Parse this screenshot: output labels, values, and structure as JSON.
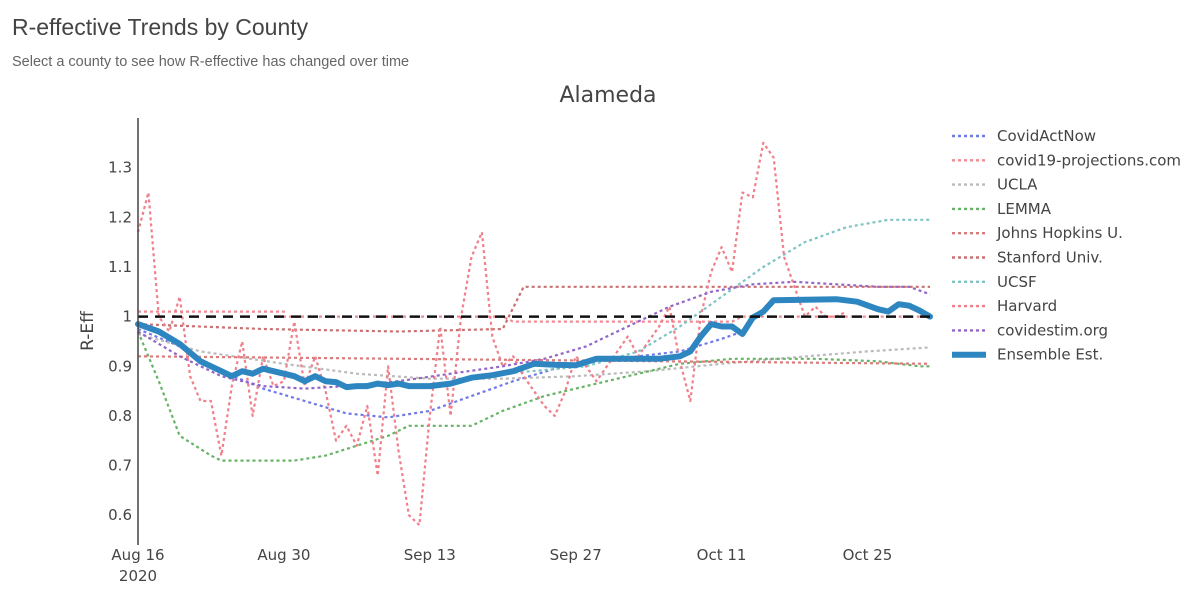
{
  "header": {
    "title": "R-effective Trends by County",
    "subtitle": "Select a county to see how R-effective has changed over time"
  },
  "chart_data": {
    "type": "line",
    "title": "Alameda",
    "xlabel": "",
    "ylabel": "R-Eff",
    "xlim": [
      "2020-08-16",
      "2020-10-31"
    ],
    "ylim": [
      0.54,
      1.4
    ],
    "x_ticks": [
      {
        "date": "2020-08-16",
        "label": "Aug 16",
        "sublabel": "2020"
      },
      {
        "date": "2020-08-30",
        "label": "Aug 30"
      },
      {
        "date": "2020-09-13",
        "label": "Sep 13"
      },
      {
        "date": "2020-09-27",
        "label": "Sep 27"
      },
      {
        "date": "2020-10-11",
        "label": "Oct 11"
      },
      {
        "date": "2020-10-25",
        "label": "Oct 25"
      }
    ],
    "y_ticks": [
      {
        "value": 0.6,
        "label": "0.6"
      },
      {
        "value": 0.7,
        "label": "0.7"
      },
      {
        "value": 0.8,
        "label": "0.8"
      },
      {
        "value": 0.9,
        "label": "0.9"
      },
      {
        "value": 1.0,
        "label": "1"
      },
      {
        "value": 1.1,
        "label": "1.1"
      },
      {
        "value": 1.2,
        "label": "1.2"
      },
      {
        "value": 1.3,
        "label": "1.3"
      }
    ],
    "grid": false,
    "legend_position": "right",
    "reference_line": {
      "y": 1.0,
      "color": "#111111",
      "style": "dashed"
    },
    "series": [
      {
        "name": "CovidActNow",
        "color": "#6f7ae8",
        "style": "dotted",
        "width": 2.2,
        "points": [
          [
            "2020-08-16",
            0.975
          ],
          [
            "2020-08-20",
            0.94
          ],
          [
            "2020-08-24",
            0.89
          ],
          [
            "2020-08-28",
            0.855
          ],
          [
            "2020-09-01",
            0.83
          ],
          [
            "2020-09-05",
            0.805
          ],
          [
            "2020-09-09",
            0.797
          ],
          [
            "2020-09-13",
            0.81
          ],
          [
            "2020-09-17",
            0.84
          ],
          [
            "2020-09-21",
            0.87
          ],
          [
            "2020-09-25",
            0.895
          ],
          [
            "2020-09-29",
            0.91
          ],
          [
            "2020-10-03",
            0.92
          ],
          [
            "2020-10-07",
            0.93
          ],
          [
            "2020-10-11",
            0.955
          ],
          [
            "2020-10-13",
            0.97
          ]
        ]
      },
      {
        "name": "covid19-projections.com",
        "color": "#f28a93",
        "style": "dotted",
        "width": 2.2,
        "points": [
          [
            "2020-08-16",
            1.01
          ],
          [
            "2020-08-30",
            1.01
          ],
          [
            "2020-08-30",
            1.0
          ],
          [
            "2020-09-13",
            1.0
          ],
          [
            "2020-09-20",
            1.0
          ],
          [
            "2020-09-21",
            0.99
          ],
          [
            "2020-10-12",
            0.99
          ],
          [
            "2020-10-13",
            1.0
          ],
          [
            "2020-10-31",
            1.0
          ]
        ]
      },
      {
        "name": "UCLA",
        "color": "#bbbbbb",
        "style": "dotted",
        "width": 2.2,
        "points": [
          [
            "2020-08-16",
            0.965
          ],
          [
            "2020-08-22",
            0.93
          ],
          [
            "2020-08-30",
            0.905
          ],
          [
            "2020-09-06",
            0.885
          ],
          [
            "2020-09-13",
            0.875
          ],
          [
            "2020-09-20",
            0.875
          ],
          [
            "2020-09-27",
            0.88
          ],
          [
            "2020-10-04",
            0.89
          ],
          [
            "2020-10-11",
            0.905
          ],
          [
            "2020-10-18",
            0.918
          ],
          [
            "2020-10-25",
            0.93
          ],
          [
            "2020-10-31",
            0.938
          ]
        ]
      },
      {
        "name": "LEMMA",
        "color": "#66b366",
        "style": "dotted",
        "width": 2.2,
        "points": [
          [
            "2020-08-16",
            0.97
          ],
          [
            "2020-08-18",
            0.87
          ],
          [
            "2020-08-20",
            0.76
          ],
          [
            "2020-08-23",
            0.72
          ],
          [
            "2020-08-24",
            0.71
          ],
          [
            "2020-08-31",
            0.71
          ],
          [
            "2020-09-03",
            0.72
          ],
          [
            "2020-09-06",
            0.74
          ],
          [
            "2020-09-09",
            0.76
          ],
          [
            "2020-09-11",
            0.78
          ],
          [
            "2020-09-17",
            0.78
          ],
          [
            "2020-09-20",
            0.81
          ],
          [
            "2020-09-24",
            0.84
          ],
          [
            "2020-09-28",
            0.86
          ],
          [
            "2020-10-02",
            0.88
          ],
          [
            "2020-10-07",
            0.905
          ],
          [
            "2020-10-12",
            0.915
          ],
          [
            "2020-10-20",
            0.915
          ],
          [
            "2020-10-26",
            0.91
          ],
          [
            "2020-10-30",
            0.9
          ],
          [
            "2020-10-31",
            0.9
          ]
        ]
      },
      {
        "name": "Johns Hopkins U.",
        "color": "#d97b7b",
        "style": "dotted",
        "width": 2.2,
        "points": [
          [
            "2020-08-16",
            0.92
          ],
          [
            "2020-10-31",
            0.905
          ]
        ]
      },
      {
        "name": "Stanford Univ.",
        "color": "#c97070",
        "style": "dotted",
        "width": 2.2,
        "points": [
          [
            "2020-08-16",
            0.985
          ],
          [
            "2020-08-28",
            0.975
          ],
          [
            "2020-09-10",
            0.97
          ],
          [
            "2020-09-20",
            0.975
          ],
          [
            "2020-09-22",
            1.06
          ],
          [
            "2020-10-31",
            1.06
          ]
        ]
      },
      {
        "name": "UCSF",
        "color": "#7ec4c4",
        "style": "dotted",
        "width": 2.2,
        "points": [
          [
            "2020-09-20",
            0.885
          ],
          [
            "2020-09-28",
            0.9
          ],
          [
            "2020-10-03",
            0.93
          ],
          [
            "2020-10-07",
            0.98
          ],
          [
            "2020-10-11",
            1.04
          ],
          [
            "2020-10-15",
            1.1
          ],
          [
            "2020-10-19",
            1.15
          ],
          [
            "2020-10-23",
            1.18
          ],
          [
            "2020-10-27",
            1.195
          ],
          [
            "2020-10-31",
            1.195
          ]
        ]
      },
      {
        "name": "Harvard",
        "color": "#f07f8a",
        "style": "dotted",
        "width": 2.2,
        "points": [
          [
            "2020-08-16",
            1.17
          ],
          [
            "2020-08-17",
            1.25
          ],
          [
            "2020-08-18",
            1.0
          ],
          [
            "2020-08-19",
            0.97
          ],
          [
            "2020-08-20",
            1.04
          ],
          [
            "2020-08-21",
            0.88
          ],
          [
            "2020-08-22",
            0.83
          ],
          [
            "2020-08-23",
            0.83
          ],
          [
            "2020-08-24",
            0.72
          ],
          [
            "2020-08-25",
            0.86
          ],
          [
            "2020-08-26",
            0.95
          ],
          [
            "2020-08-27",
            0.8
          ],
          [
            "2020-08-28",
            0.92
          ],
          [
            "2020-08-29",
            0.86
          ],
          [
            "2020-08-30",
            0.87
          ],
          [
            "2020-08-31",
            0.99
          ],
          [
            "2020-09-01",
            0.86
          ],
          [
            "2020-09-02",
            0.92
          ],
          [
            "2020-09-03",
            0.85
          ],
          [
            "2020-09-04",
            0.75
          ],
          [
            "2020-09-05",
            0.78
          ],
          [
            "2020-09-06",
            0.74
          ],
          [
            "2020-09-07",
            0.82
          ],
          [
            "2020-09-08",
            0.68
          ],
          [
            "2020-09-09",
            0.9
          ],
          [
            "2020-09-10",
            0.73
          ],
          [
            "2020-09-11",
            0.6
          ],
          [
            "2020-09-12",
            0.58
          ],
          [
            "2020-09-13",
            0.8
          ],
          [
            "2020-09-14",
            0.98
          ],
          [
            "2020-09-15",
            0.8
          ],
          [
            "2020-09-16",
            1.0
          ],
          [
            "2020-09-17",
            1.12
          ],
          [
            "2020-09-18",
            1.17
          ],
          [
            "2020-09-19",
            0.96
          ],
          [
            "2020-09-20",
            0.9
          ],
          [
            "2020-09-21",
            0.92
          ],
          [
            "2020-09-22",
            0.88
          ],
          [
            "2020-09-23",
            0.85
          ],
          [
            "2020-09-24",
            0.82
          ],
          [
            "2020-09-25",
            0.8
          ],
          [
            "2020-09-26",
            0.85
          ],
          [
            "2020-09-27",
            0.92
          ],
          [
            "2020-09-28",
            0.9
          ],
          [
            "2020-09-29",
            0.87
          ],
          [
            "2020-09-30",
            0.9
          ],
          [
            "2020-10-01",
            0.93
          ],
          [
            "2020-10-02",
            0.96
          ],
          [
            "2020-10-03",
            0.92
          ],
          [
            "2020-10-04",
            0.95
          ],
          [
            "2020-10-05",
            0.98
          ],
          [
            "2020-10-06",
            1.02
          ],
          [
            "2020-10-07",
            0.91
          ],
          [
            "2020-10-08",
            0.83
          ],
          [
            "2020-10-09",
            1.0
          ],
          [
            "2020-10-10",
            1.09
          ],
          [
            "2020-10-11",
            1.14
          ],
          [
            "2020-10-12",
            1.09
          ],
          [
            "2020-10-13",
            1.25
          ],
          [
            "2020-10-14",
            1.24
          ],
          [
            "2020-10-15",
            1.35
          ],
          [
            "2020-10-16",
            1.32
          ],
          [
            "2020-10-17",
            1.12
          ],
          [
            "2020-10-18",
            1.06
          ],
          [
            "2020-10-19",
            1.0
          ],
          [
            "2020-10-20",
            1.02
          ],
          [
            "2020-10-21",
            1.0
          ],
          [
            "2020-10-22",
            1.0
          ],
          [
            "2020-10-23",
            1.01
          ]
        ]
      },
      {
        "name": "covidestim.org",
        "color": "#9266c9",
        "style": "dotted",
        "width": 2.2,
        "points": [
          [
            "2020-08-16",
            0.97
          ],
          [
            "2020-08-20",
            0.92
          ],
          [
            "2020-08-24",
            0.88
          ],
          [
            "2020-08-28",
            0.86
          ],
          [
            "2020-09-01",
            0.855
          ],
          [
            "2020-09-05",
            0.86
          ],
          [
            "2020-09-10",
            0.87
          ],
          [
            "2020-09-15",
            0.885
          ],
          [
            "2020-09-20",
            0.9
          ],
          [
            "2020-09-24",
            0.915
          ],
          [
            "2020-09-28",
            0.94
          ],
          [
            "2020-10-02",
            0.98
          ],
          [
            "2020-10-06",
            1.02
          ],
          [
            "2020-10-10",
            1.05
          ],
          [
            "2020-10-14",
            1.065
          ],
          [
            "2020-10-18",
            1.07
          ],
          [
            "2020-10-22",
            1.065
          ],
          [
            "2020-10-26",
            1.06
          ],
          [
            "2020-10-29",
            1.06
          ],
          [
            "2020-10-31",
            1.045
          ]
        ]
      },
      {
        "name": "Ensemble Est.",
        "color": "#2e86c1",
        "style": "solid",
        "width": 6,
        "points": [
          [
            "2020-08-16",
            0.985
          ],
          [
            "2020-08-18",
            0.97
          ],
          [
            "2020-08-20",
            0.945
          ],
          [
            "2020-08-22",
            0.91
          ],
          [
            "2020-08-24",
            0.89
          ],
          [
            "2020-08-25",
            0.88
          ],
          [
            "2020-08-26",
            0.89
          ],
          [
            "2020-08-27",
            0.885
          ],
          [
            "2020-08-28",
            0.895
          ],
          [
            "2020-08-30",
            0.885
          ],
          [
            "2020-08-31",
            0.88
          ],
          [
            "2020-09-01",
            0.87
          ],
          [
            "2020-09-02",
            0.88
          ],
          [
            "2020-09-03",
            0.87
          ],
          [
            "2020-09-04",
            0.868
          ],
          [
            "2020-09-05",
            0.858
          ],
          [
            "2020-09-06",
            0.86
          ],
          [
            "2020-09-07",
            0.86
          ],
          [
            "2020-09-08",
            0.865
          ],
          [
            "2020-09-09",
            0.862
          ],
          [
            "2020-09-10",
            0.865
          ],
          [
            "2020-09-11",
            0.86
          ],
          [
            "2020-09-12",
            0.86
          ],
          [
            "2020-09-13",
            0.86
          ],
          [
            "2020-09-15",
            0.865
          ],
          [
            "2020-09-17",
            0.877
          ],
          [
            "2020-09-19",
            0.882
          ],
          [
            "2020-09-21",
            0.89
          ],
          [
            "2020-09-23",
            0.905
          ],
          [
            "2020-09-25",
            0.903
          ],
          [
            "2020-09-27",
            0.902
          ],
          [
            "2020-09-29",
            0.915
          ],
          [
            "2020-10-02",
            0.915
          ],
          [
            "2020-10-05",
            0.915
          ],
          [
            "2020-10-07",
            0.92
          ],
          [
            "2020-10-08",
            0.93
          ],
          [
            "2020-10-09",
            0.96
          ],
          [
            "2020-10-10",
            0.985
          ],
          [
            "2020-10-11",
            0.98
          ],
          [
            "2020-10-12",
            0.98
          ],
          [
            "2020-10-13",
            0.965
          ],
          [
            "2020-10-14",
            0.998
          ],
          [
            "2020-10-15",
            1.01
          ],
          [
            "2020-10-16",
            1.033
          ],
          [
            "2020-10-19",
            1.034
          ],
          [
            "2020-10-22",
            1.035
          ],
          [
            "2020-10-24",
            1.03
          ],
          [
            "2020-10-26",
            1.015
          ],
          [
            "2020-10-27",
            1.01
          ],
          [
            "2020-10-28",
            1.025
          ],
          [
            "2020-10-29",
            1.022
          ],
          [
            "2020-10-30",
            1.012
          ],
          [
            "2020-10-31",
            1.0
          ]
        ]
      }
    ]
  }
}
